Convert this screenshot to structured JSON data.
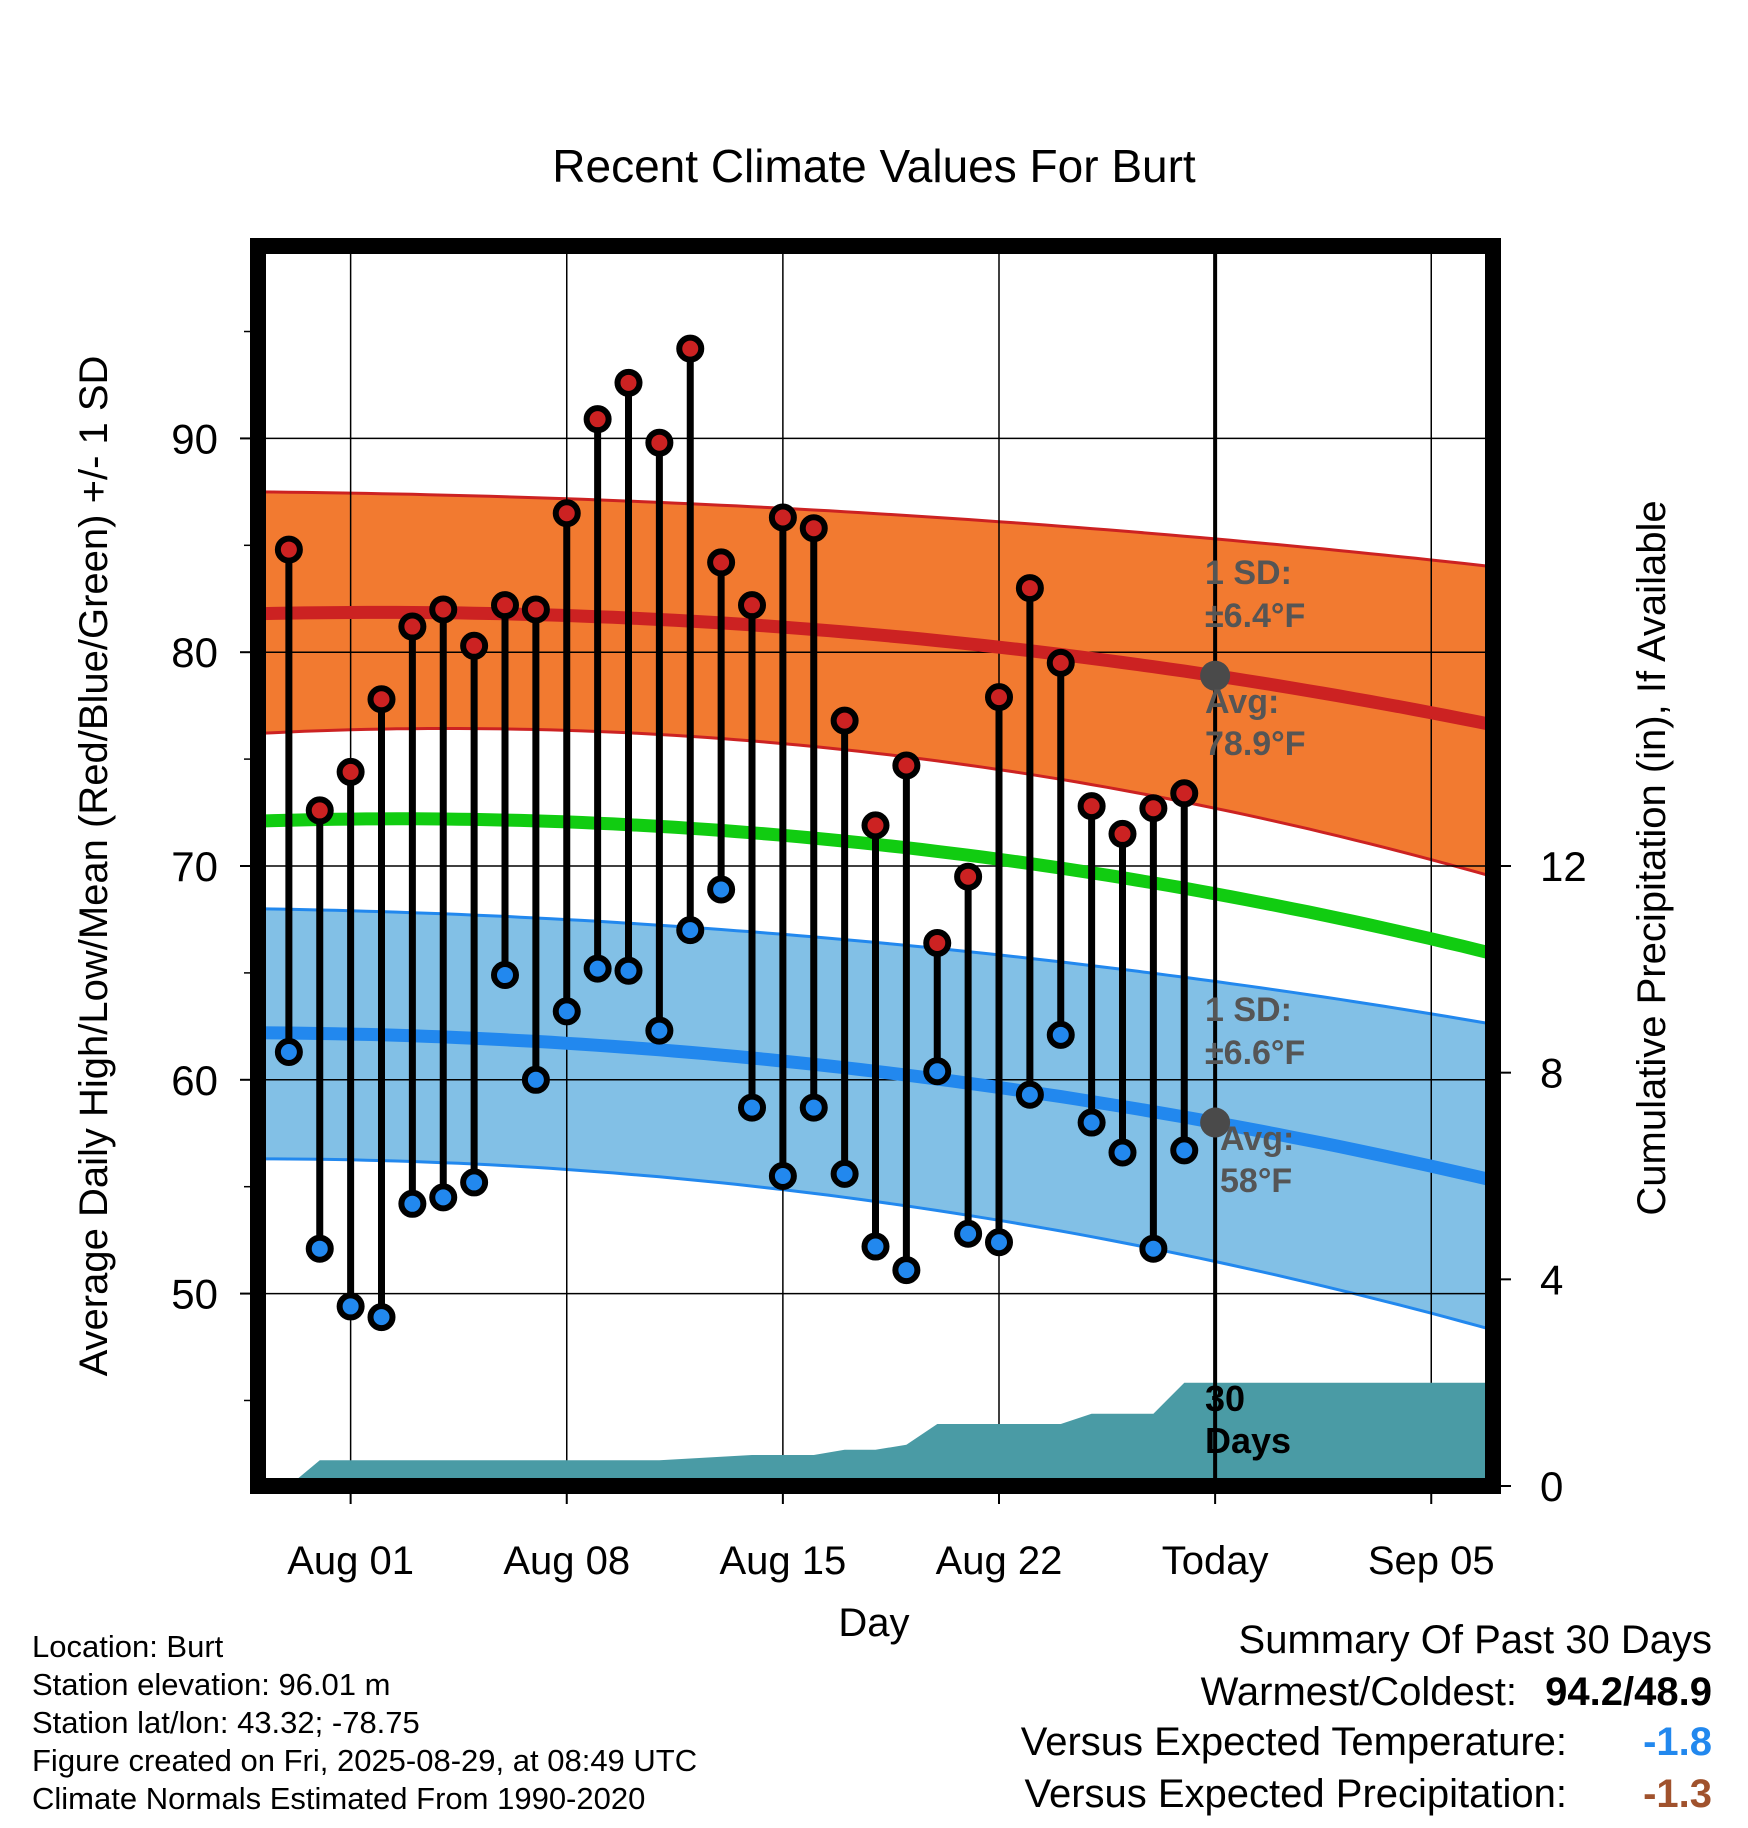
{
  "chart_data": {
    "type": "line",
    "title": "Recent Climate Values For Burt",
    "xlabel": "Day",
    "ylabel": "Average Daily High/Low/Mean (Red/Blue/Green) +/- 1 SD",
    "ylabel_right": "Cumulative Precipitation (in), If Available",
    "x_ticks": [
      {
        "day": 3,
        "label": "Aug 01"
      },
      {
        "day": 10,
        "label": "Aug 08"
      },
      {
        "day": 17,
        "label": "Aug 15"
      },
      {
        "day": 24,
        "label": "Aug 22"
      },
      {
        "day": 31,
        "label": "Today"
      },
      {
        "day": 38,
        "label": "Sep 05"
      }
    ],
    "x_range": [
      "Jul 29",
      "Sep 07"
    ],
    "today": "Aug 29",
    "y_left": {
      "ticks": [
        50,
        60,
        70,
        80,
        90
      ],
      "range": [
        41,
        99
      ]
    },
    "y_right": {
      "ticks": [
        0,
        4,
        8,
        12
      ],
      "range": [
        0,
        24
      ]
    },
    "grid": true,
    "observed_days": [
      "Jul 30",
      "Jul 31",
      "Aug 01",
      "Aug 02",
      "Aug 03",
      "Aug 04",
      "Aug 05",
      "Aug 06",
      "Aug 07",
      "Aug 08",
      "Aug 09",
      "Aug 10",
      "Aug 11",
      "Aug 12",
      "Aug 13",
      "Aug 14",
      "Aug 15",
      "Aug 16",
      "Aug 17",
      "Aug 18",
      "Aug 19",
      "Aug 20",
      "Aug 21",
      "Aug 22",
      "Aug 23",
      "Aug 24",
      "Aug 25",
      "Aug 26",
      "Aug 27",
      "Aug 28"
    ],
    "series": [
      {
        "name": "High",
        "color": "#cc2222",
        "values": [
          84.8,
          72.6,
          74.4,
          77.8,
          81.2,
          82.0,
          80.3,
          82.2,
          82.0,
          86.5,
          90.9,
          92.6,
          89.8,
          94.2,
          84.2,
          82.2,
          86.3,
          85.8,
          76.8,
          71.9,
          74.7,
          66.4,
          69.5,
          77.9,
          83.0,
          79.5,
          72.8,
          71.5,
          72.7,
          73.4
        ]
      },
      {
        "name": "Low",
        "color": "#2288ee",
        "values": [
          61.3,
          52.1,
          49.4,
          48.9,
          54.2,
          54.5,
          55.2,
          64.9,
          60.0,
          63.2,
          65.2,
          65.1,
          62.3,
          67.0,
          68.9,
          58.7,
          55.5,
          58.7,
          55.6,
          52.2,
          51.1,
          60.4,
          52.8,
          52.4,
          59.3,
          62.1,
          58.0,
          56.6,
          52.1,
          56.7
        ]
      }
    ],
    "normals": {
      "day_range": [
        0,
        40
      ],
      "high_mean": [
        81.8,
        78.9,
        76.6
      ],
      "high_upper": [
        87.5,
        85.3,
        84.0
      ],
      "high_lower": [
        76.2,
        72.7,
        69.5
      ],
      "mean": [
        72.1,
        68.7,
        65.9
      ],
      "low_mean": [
        62.2,
        58.0,
        55.3
      ],
      "low_upper": [
        68.0,
        64.6,
        62.6
      ],
      "low_lower": [
        56.3,
        51.5,
        48.3
      ]
    },
    "precipitation": {
      "days": [
        1,
        2,
        3,
        12,
        13,
        16,
        17,
        18,
        19,
        20,
        21,
        22,
        23,
        26,
        27,
        28,
        29,
        30,
        31,
        40
      ],
      "values": [
        0.0,
        0.5,
        0.5,
        0.5,
        0.5,
        0.6,
        0.6,
        0.6,
        0.7,
        0.7,
        0.8,
        1.2,
        1.2,
        1.2,
        1.4,
        1.4,
        1.4,
        2.0,
        2.0,
        2.0
      ],
      "fill_color": "#4a9ba5"
    },
    "annotations": {
      "high_sd": "1 SD:",
      "high_sd_val": "±6.4°F",
      "high_avg": "Avg:",
      "high_avg_val": "78.9°F",
      "low_sd": "1 SD:",
      "low_sd_val": "±6.6°F",
      "low_avg": "Avg:",
      "low_avg_val": "58°F",
      "days_num": "30",
      "days_word": "Days",
      "today_high": 78.9,
      "today_low": 58.0
    },
    "colors": {
      "high_band": "#f27a30",
      "high_line": "#cc2222",
      "low_band": "#82c0e6",
      "low_line": "#2288ee",
      "mean_line": "#11cc11",
      "annotation_text": "#555555"
    }
  },
  "info": {
    "location": "Location: Burt",
    "elevation": "Station elevation: 96.01 m",
    "latlon": "Station lat/lon: 43.32; -78.75",
    "created": "Figure created on Fri, 2025-08-29, at 08:49 UTC",
    "normals": "Climate Normals Estimated From 1990-2020"
  },
  "summary": {
    "title": "Summary Of Past 30 Days",
    "warm_cold_label": "Warmest/Coldest:",
    "warm_cold_value": "94.2/48.9",
    "temp_label": "Versus Expected Temperature:",
    "temp_value": "-1.8",
    "temp_color": "#2288ee",
    "precip_label": "Versus Expected Precipitation:",
    "precip_value": "-1.3",
    "precip_color": "#a0522d"
  }
}
